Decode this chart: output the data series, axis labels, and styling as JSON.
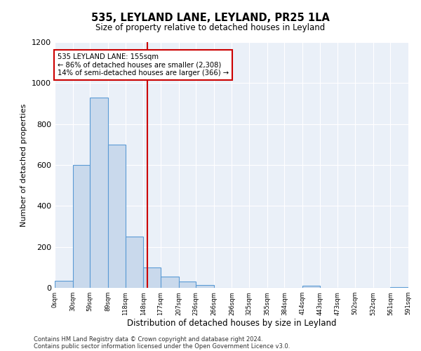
{
  "title": "535, LEYLAND LANE, LEYLAND, PR25 1LA",
  "subtitle": "Size of property relative to detached houses in Leyland",
  "xlabel": "Distribution of detached houses by size in Leyland",
  "ylabel": "Number of detached properties",
  "bin_labels": [
    "0sqm",
    "30sqm",
    "59sqm",
    "89sqm",
    "118sqm",
    "148sqm",
    "177sqm",
    "207sqm",
    "236sqm",
    "266sqm",
    "296sqm",
    "325sqm",
    "355sqm",
    "384sqm",
    "414sqm",
    "443sqm",
    "473sqm",
    "502sqm",
    "532sqm",
    "561sqm",
    "591sqm"
  ],
  "bin_edges": [
    0,
    30,
    59,
    89,
    118,
    148,
    177,
    207,
    236,
    266,
    296,
    325,
    355,
    384,
    414,
    443,
    473,
    502,
    532,
    561,
    591
  ],
  "bar_heights": [
    35,
    600,
    930,
    700,
    250,
    100,
    55,
    30,
    15,
    0,
    0,
    0,
    0,
    0,
    10,
    0,
    0,
    0,
    0,
    5
  ],
  "bar_color": "#c9d9ec",
  "bar_edge_color": "#5b9bd5",
  "background_color": "#eaf0f8",
  "vline_x": 155,
  "vline_color": "#cc0000",
  "annotation_line1": "535 LEYLAND LANE: 155sqm",
  "annotation_line2": "← 86% of detached houses are smaller (2,308)",
  "annotation_line3": "14% of semi-detached houses are larger (366) →",
  "annotation_box_color": "#cc0000",
  "ylim": [
    0,
    1200
  ],
  "footer_line1": "Contains HM Land Registry data © Crown copyright and database right 2024.",
  "footer_line2": "Contains public sector information licensed under the Open Government Licence v3.0."
}
